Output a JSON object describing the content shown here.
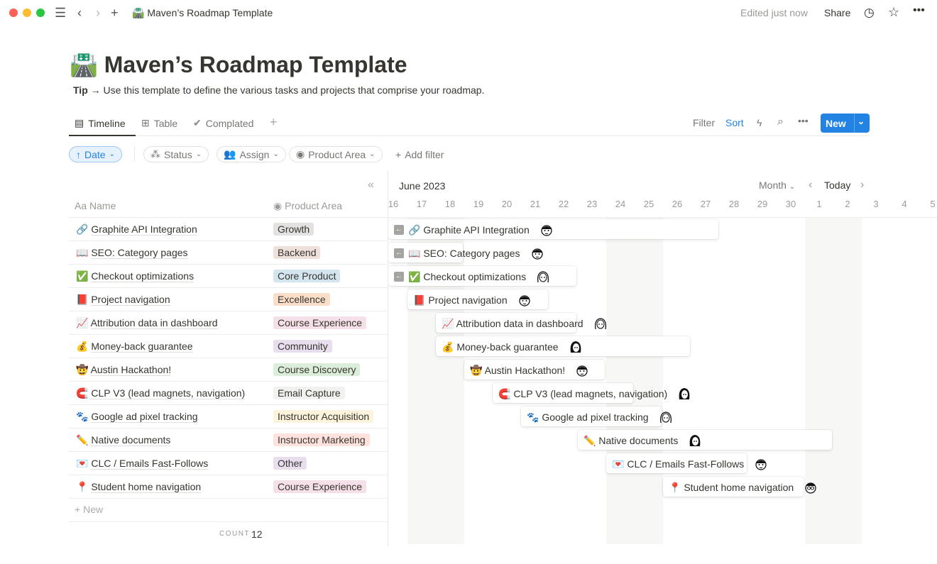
{
  "window": {
    "title": "Maven’s Roadmap Template",
    "edited": "Edited just now",
    "share": "Share"
  },
  "page": {
    "icon": "🛣️",
    "title": "Maven’s Roadmap Template",
    "tip_label": "Tip",
    "tip_arrow": "→",
    "tip_text": "Use this template to define the various tasks and projects that comprise your roadmap."
  },
  "tabs": [
    {
      "label": "Timeline",
      "icon": "timeline-icon"
    },
    {
      "label": "Table",
      "icon": "table-icon"
    },
    {
      "label": "Complated",
      "icon": "check-circle-icon"
    }
  ],
  "actions": {
    "filter": "Filter",
    "sort": "Sort",
    "new": "New"
  },
  "chips": {
    "date": "Date",
    "status": "Status",
    "assign": "Assign",
    "product_area": "Product Area",
    "add_filter": "Add filter"
  },
  "table": {
    "name_header": "Name",
    "name_prefix": "Aa",
    "area_header": "Product Area",
    "new_row": "New",
    "count_label": "COUNT",
    "count": "12"
  },
  "timeline": {
    "month": "June 2023",
    "scale": "Month",
    "today": "Today",
    "days": [
      "16",
      "17",
      "18",
      "19",
      "20",
      "21",
      "22",
      "23",
      "24",
      "25",
      "26",
      "27",
      "28",
      "29",
      "30",
      "1",
      "2",
      "3",
      "4",
      "5"
    ]
  },
  "rows": [
    {
      "emoji": "🔗",
      "name": "Graphite API Integration",
      "area": "Growth",
      "color": "#e3e2e0",
      "start": "2023-06-16",
      "end": "2023-06-27",
      "before": true,
      "avatar": "man"
    },
    {
      "emoji": "📖",
      "name": "SEO: Category pages",
      "area": "Backend",
      "color": "#eee0da",
      "start": "2023-06-16",
      "end": "2023-06-18",
      "before": true,
      "avatar": "man"
    },
    {
      "emoji": "✅",
      "name": "Checkout optimizations",
      "area": "Core Product",
      "color": "#d3e5ef",
      "start": "2023-06-16",
      "end": "2023-06-22",
      "before": true,
      "avatar": "woman"
    },
    {
      "emoji": "📕",
      "name": "Project navigation",
      "area": "Excellence",
      "color": "#fadec9",
      "start": "2023-06-17",
      "end": "2023-06-21",
      "avatar": "man"
    },
    {
      "emoji": "📈",
      "name": "Attribution data in dashboard",
      "area": "Course Experience",
      "color": "#f5e0e9",
      "start": "2023-06-18",
      "end": "2023-06-22",
      "avatar": "woman"
    },
    {
      "emoji": "💰",
      "name": "Money-back guarantee",
      "area": "Community",
      "color": "#e8deee",
      "start": "2023-06-18",
      "end": "2023-06-26",
      "avatar": "woman-dark"
    },
    {
      "emoji": "🤠",
      "name": "Austin Hackathon!",
      "area": "Course Discovery",
      "color": "#dbeddb",
      "start": "2023-06-19",
      "end": "2023-06-23",
      "avatar": "man"
    },
    {
      "emoji": "🧲",
      "name": "CLP V3 (lead magnets, navigation)",
      "area": "Email Capture",
      "color": "#f1f1ef",
      "start": "2023-06-20",
      "end": "2023-06-24",
      "avatar": "woman-dark"
    },
    {
      "emoji": "🐾",
      "name": "Google ad pixel tracking",
      "area": "Instructor Acquisition",
      "color": "#fbf3db",
      "start": "2023-06-21",
      "end": "2023-06-25",
      "avatar": "woman"
    },
    {
      "emoji": "✏️",
      "name": "Native documents",
      "area": "Instructor Marketing",
      "color": "#ffe2dd",
      "start": "2023-06-23",
      "end": "2023-07-01",
      "avatar": "woman-dark"
    },
    {
      "emoji": "💌",
      "name": "CLC / Emails Fast-Follows",
      "area": "Other",
      "color": "#e8deee",
      "start": "2023-06-24",
      "end": "2023-06-28",
      "avatar": "man"
    },
    {
      "emoji": "📍",
      "name": "Student home navigation",
      "area": "Course Experience",
      "color": "#f5e0e9",
      "start": "2023-06-26",
      "end": "2023-06-30",
      "avatar": "man-glasses"
    }
  ],
  "colors": {
    "accent": "#2383e2",
    "weekend": "#f7f7f5"
  }
}
